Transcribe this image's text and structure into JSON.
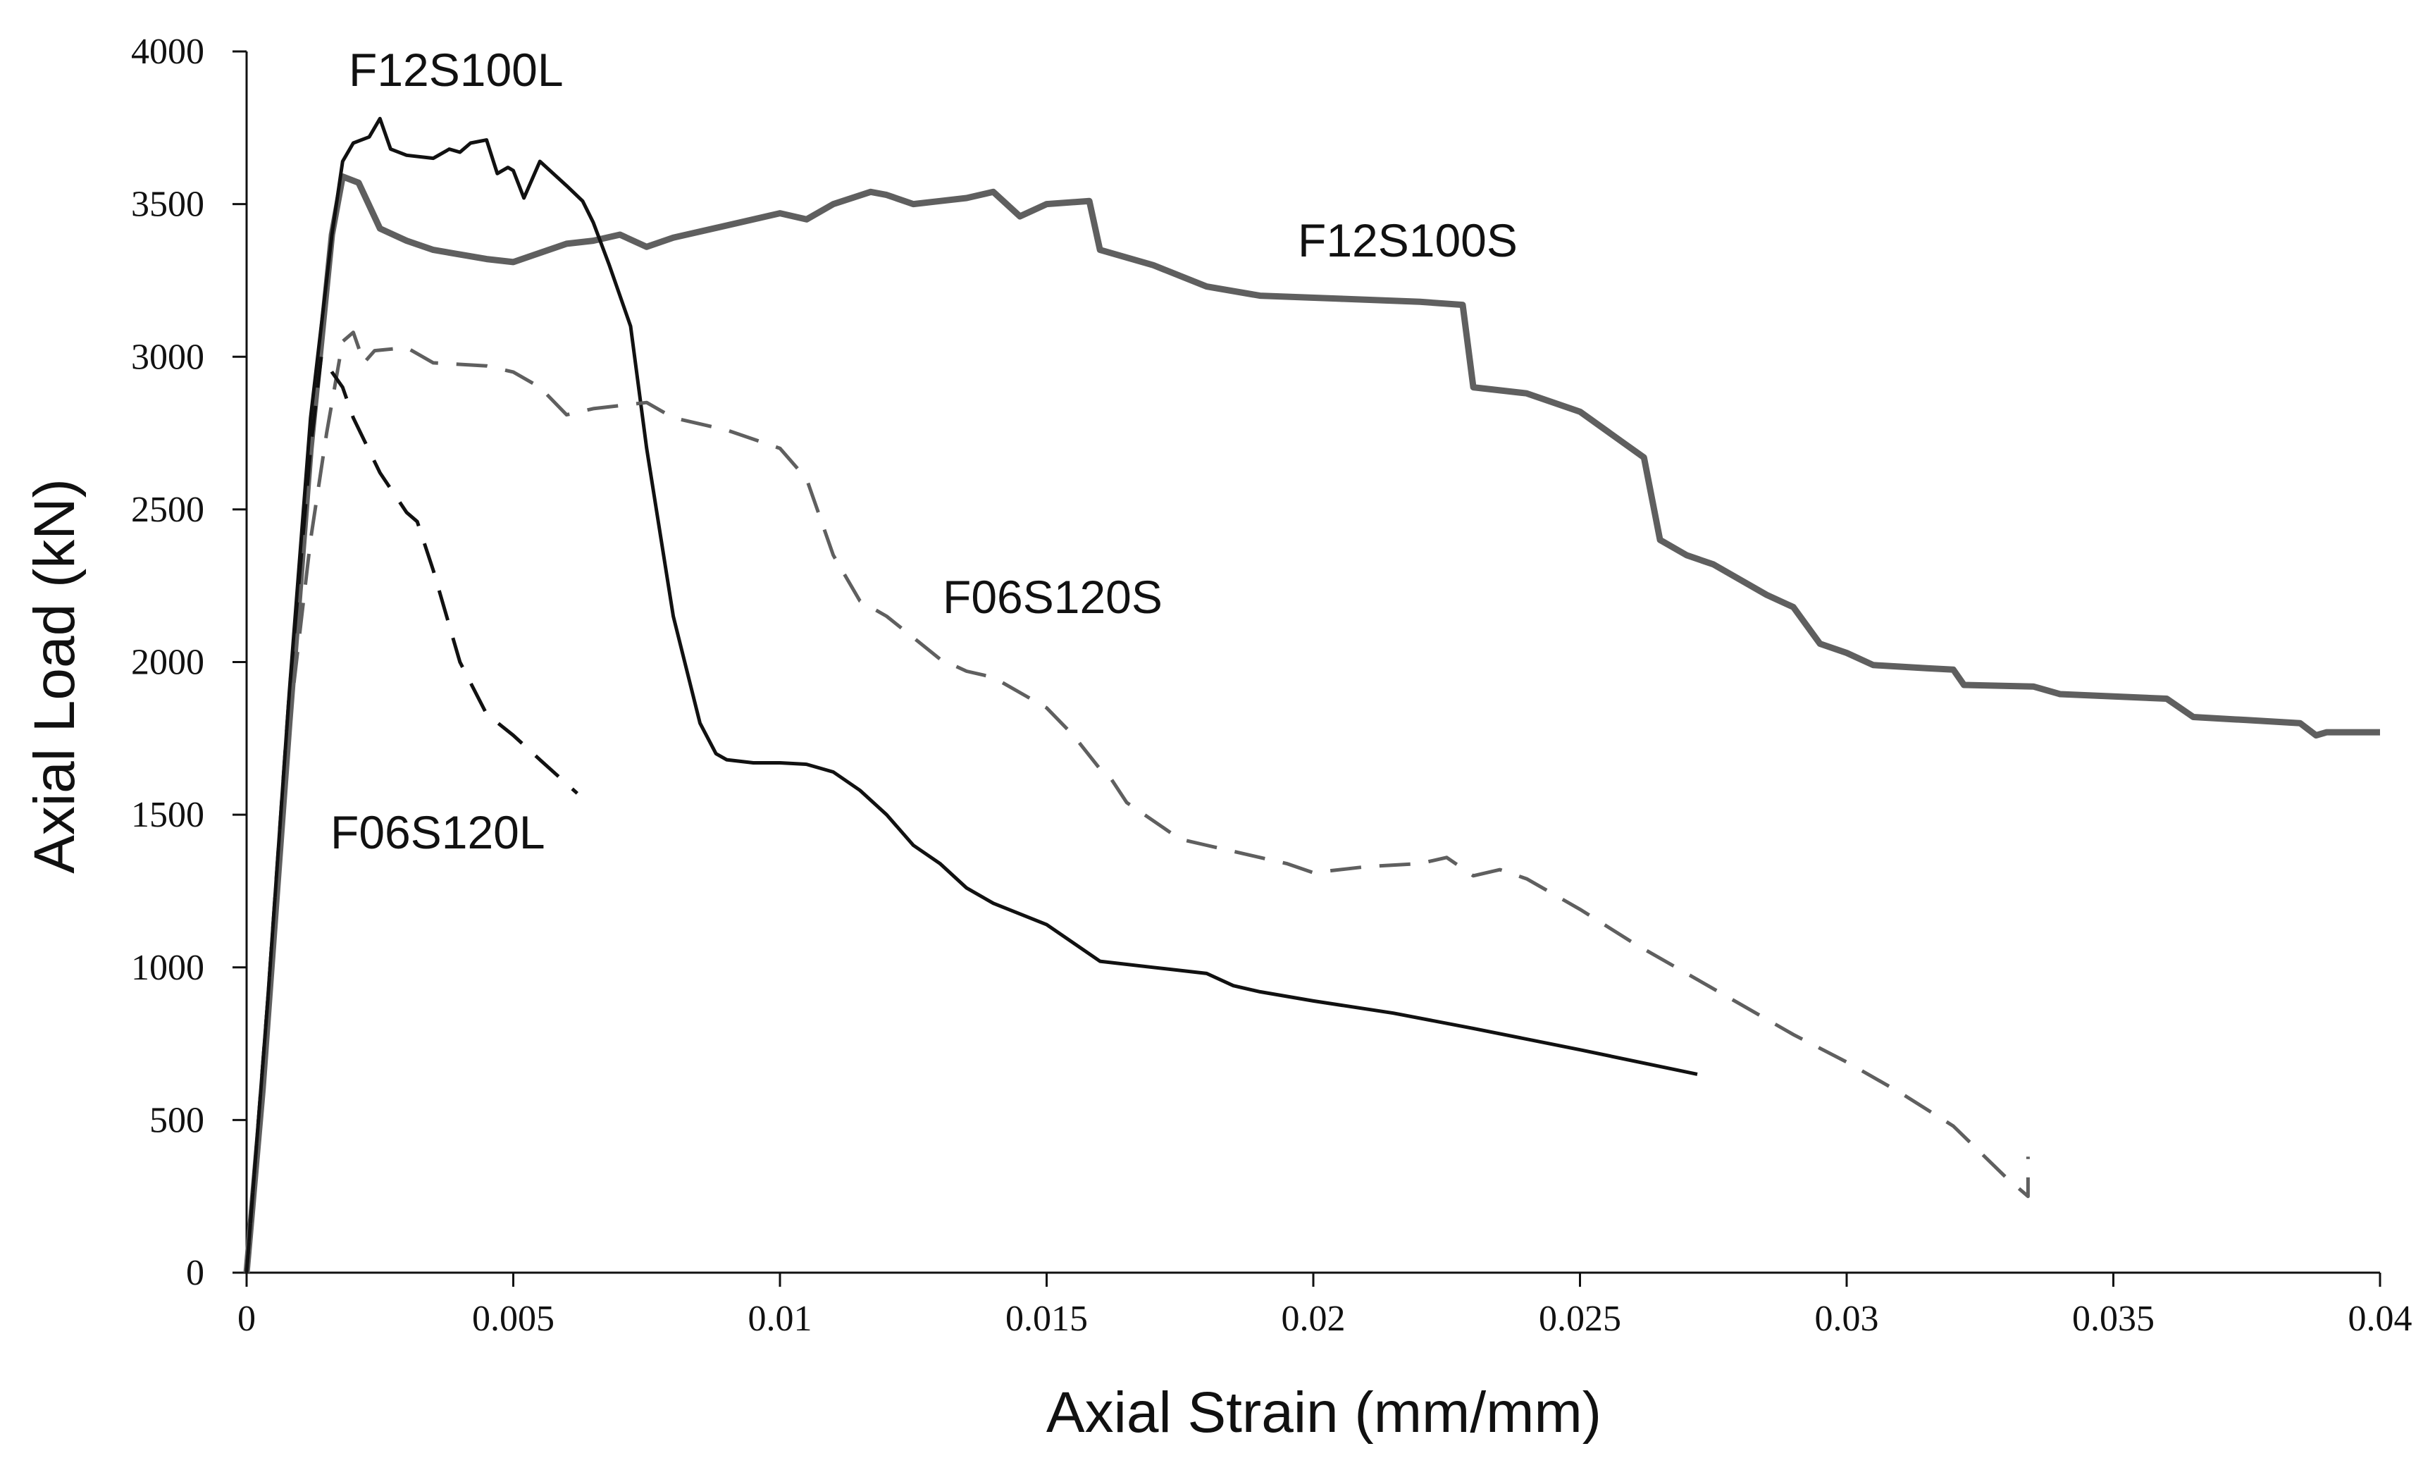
{
  "chart_data": {
    "type": "line",
    "title": "",
    "xlabel": "Axial Strain (mm/mm)",
    "ylabel": "Axial Load (kN)",
    "xlim": [
      0,
      0.04
    ],
    "ylim": [
      0,
      4000
    ],
    "grid": false,
    "x_ticks": [
      "0",
      "0.005",
      "0.01",
      "0.015",
      "0.02",
      "0.025",
      "0.03",
      "0.035",
      "0.04"
    ],
    "x_tick_values": [
      0,
      0.005,
      0.01,
      0.015,
      0.02,
      0.025,
      0.03,
      0.035,
      0.04
    ],
    "y_ticks": [
      "0",
      "500",
      "1000",
      "1500",
      "2000",
      "2500",
      "3000",
      "3500",
      "4000"
    ],
    "y_tick_values": [
      0,
      500,
      1000,
      1500,
      2000,
      2500,
      3000,
      3500,
      4000
    ],
    "series": [
      {
        "name": "F12S100S",
        "label": "F12S100S",
        "color": "#5f5f5f",
        "style": "solid-thick",
        "points": [
          [
            0,
            0
          ],
          [
            0.0003,
            600
          ],
          [
            0.0008,
            1800
          ],
          [
            0.0012,
            2700
          ],
          [
            0.0016,
            3400
          ],
          [
            0.0018,
            3590
          ],
          [
            0.0021,
            3570
          ],
          [
            0.0025,
            3420
          ],
          [
            0.003,
            3380
          ],
          [
            0.0035,
            3350
          ],
          [
            0.0045,
            3320
          ],
          [
            0.005,
            3310
          ],
          [
            0.0055,
            3340
          ],
          [
            0.006,
            3370
          ],
          [
            0.0065,
            3380
          ],
          [
            0.007,
            3400
          ],
          [
            0.0075,
            3360
          ],
          [
            0.008,
            3390
          ],
          [
            0.009,
            3430
          ],
          [
            0.01,
            3470
          ],
          [
            0.0105,
            3450
          ],
          [
            0.011,
            3500
          ],
          [
            0.0117,
            3540
          ],
          [
            0.012,
            3530
          ],
          [
            0.0125,
            3500
          ],
          [
            0.013,
            3510
          ],
          [
            0.0135,
            3520
          ],
          [
            0.014,
            3540
          ],
          [
            0.0145,
            3460
          ],
          [
            0.015,
            3500
          ],
          [
            0.0158,
            3510
          ],
          [
            0.016,
            3350
          ],
          [
            0.017,
            3300
          ],
          [
            0.018,
            3230
          ],
          [
            0.019,
            3200
          ],
          [
            0.0205,
            3190
          ],
          [
            0.022,
            3180
          ],
          [
            0.0228,
            3170
          ],
          [
            0.023,
            2900
          ],
          [
            0.024,
            2880
          ],
          [
            0.025,
            2820
          ],
          [
            0.0258,
            2720
          ],
          [
            0.0262,
            2670
          ],
          [
            0.0265,
            2400
          ],
          [
            0.027,
            2350
          ],
          [
            0.0275,
            2320
          ],
          [
            0.0285,
            2220
          ],
          [
            0.029,
            2180
          ],
          [
            0.0295,
            2060
          ],
          [
            0.03,
            2030
          ],
          [
            0.0305,
            1990
          ],
          [
            0.0315,
            1980
          ],
          [
            0.032,
            1975
          ],
          [
            0.0322,
            1925
          ],
          [
            0.0335,
            1920
          ],
          [
            0.034,
            1895
          ],
          [
            0.036,
            1880
          ],
          [
            0.0365,
            1820
          ],
          [
            0.0375,
            1810
          ],
          [
            0.0385,
            1800
          ],
          [
            0.0388,
            1760
          ],
          [
            0.039,
            1770
          ],
          [
            0.04,
            1770
          ]
        ]
      },
      {
        "name": "F12S100L",
        "label": "F12S100L",
        "color": "#111111",
        "style": "solid",
        "points": [
          [
            0,
            0
          ],
          [
            0.0004,
            900
          ],
          [
            0.0008,
            1900
          ],
          [
            0.0012,
            2800
          ],
          [
            0.0016,
            3400
          ],
          [
            0.0018,
            3640
          ],
          [
            0.002,
            3700
          ],
          [
            0.0023,
            3720
          ],
          [
            0.0025,
            3780
          ],
          [
            0.0027,
            3680
          ],
          [
            0.003,
            3660
          ],
          [
            0.0035,
            3650
          ],
          [
            0.0038,
            3680
          ],
          [
            0.004,
            3670
          ],
          [
            0.0042,
            3700
          ],
          [
            0.0045,
            3710
          ],
          [
            0.0047,
            3600
          ],
          [
            0.0049,
            3620
          ],
          [
            0.005,
            3610
          ],
          [
            0.0052,
            3520
          ],
          [
            0.0055,
            3640
          ],
          [
            0.006,
            3560
          ],
          [
            0.0063,
            3510
          ],
          [
            0.0065,
            3440
          ],
          [
            0.0068,
            3300
          ],
          [
            0.0072,
            3100
          ],
          [
            0.0075,
            2700
          ],
          [
            0.008,
            2150
          ],
          [
            0.0085,
            1800
          ],
          [
            0.0088,
            1700
          ],
          [
            0.009,
            1680
          ],
          [
            0.0095,
            1670
          ],
          [
            0.01,
            1670
          ],
          [
            0.0105,
            1665
          ],
          [
            0.011,
            1640
          ],
          [
            0.0115,
            1580
          ],
          [
            0.012,
            1500
          ],
          [
            0.0125,
            1400
          ],
          [
            0.013,
            1340
          ],
          [
            0.0135,
            1260
          ],
          [
            0.014,
            1210
          ],
          [
            0.015,
            1140
          ],
          [
            0.0155,
            1080
          ],
          [
            0.016,
            1020
          ],
          [
            0.017,
            1000
          ],
          [
            0.018,
            980
          ],
          [
            0.0185,
            940
          ],
          [
            0.019,
            920
          ],
          [
            0.02,
            890
          ],
          [
            0.0215,
            850
          ],
          [
            0.023,
            800
          ],
          [
            0.025,
            730
          ],
          [
            0.0272,
            650
          ]
        ]
      },
      {
        "name": "F06S120S",
        "label": "F06S120S",
        "color": "#5f5f5f",
        "style": "dashed",
        "points": [
          [
            0,
            0
          ],
          [
            0.0004,
            900
          ],
          [
            0.0008,
            1800
          ],
          [
            0.0012,
            2400
          ],
          [
            0.0015,
            2750
          ],
          [
            0.0018,
            3050
          ],
          [
            0.002,
            3080
          ],
          [
            0.0022,
            2980
          ],
          [
            0.0024,
            3020
          ],
          [
            0.003,
            3030
          ],
          [
            0.0035,
            2980
          ],
          [
            0.0045,
            2970
          ],
          [
            0.005,
            2950
          ],
          [
            0.0055,
            2900
          ],
          [
            0.006,
            2810
          ],
          [
            0.0065,
            2830
          ],
          [
            0.007,
            2840
          ],
          [
            0.0075,
            2850
          ],
          [
            0.008,
            2800
          ],
          [
            0.009,
            2760
          ],
          [
            0.01,
            2700
          ],
          [
            0.0105,
            2600
          ],
          [
            0.011,
            2350
          ],
          [
            0.0115,
            2200
          ],
          [
            0.012,
            2150
          ],
          [
            0.0125,
            2080
          ],
          [
            0.013,
            2010
          ],
          [
            0.0135,
            1970
          ],
          [
            0.014,
            1950
          ],
          [
            0.015,
            1850
          ],
          [
            0.0155,
            1760
          ],
          [
            0.016,
            1650
          ],
          [
            0.0162,
            1620
          ],
          [
            0.0165,
            1540
          ],
          [
            0.0175,
            1420
          ],
          [
            0.018,
            1400
          ],
          [
            0.0185,
            1380
          ],
          [
            0.019,
            1360
          ],
          [
            0.0195,
            1340
          ],
          [
            0.02,
            1310
          ],
          [
            0.021,
            1330
          ],
          [
            0.022,
            1340
          ],
          [
            0.0225,
            1360
          ],
          [
            0.023,
            1300
          ],
          [
            0.0235,
            1320
          ],
          [
            0.024,
            1290
          ],
          [
            0.025,
            1190
          ],
          [
            0.026,
            1080
          ],
          [
            0.027,
            980
          ],
          [
            0.028,
            880
          ],
          [
            0.029,
            780
          ],
          [
            0.03,
            690
          ],
          [
            0.031,
            590
          ],
          [
            0.032,
            480
          ],
          [
            0.033,
            310
          ],
          [
            0.0334,
            250
          ],
          [
            0.0334,
            380
          ]
        ]
      },
      {
        "name": "F06S120L",
        "label": "F06S120L",
        "color": "#111111",
        "style": "dashed",
        "points": [
          [
            0,
            0
          ],
          [
            0.0004,
            900
          ],
          [
            0.0008,
            1900
          ],
          [
            0.0012,
            2700
          ],
          [
            0.0014,
            3000
          ],
          [
            0.0015,
            2980
          ],
          [
            0.0016,
            2950
          ],
          [
            0.0018,
            2900
          ],
          [
            0.002,
            2800
          ],
          [
            0.0025,
            2620
          ],
          [
            0.003,
            2490
          ],
          [
            0.0032,
            2460
          ],
          [
            0.0035,
            2300
          ],
          [
            0.004,
            2000
          ],
          [
            0.0045,
            1830
          ],
          [
            0.005,
            1760
          ],
          [
            0.0055,
            1680
          ],
          [
            0.0062,
            1570
          ]
        ]
      }
    ]
  }
}
